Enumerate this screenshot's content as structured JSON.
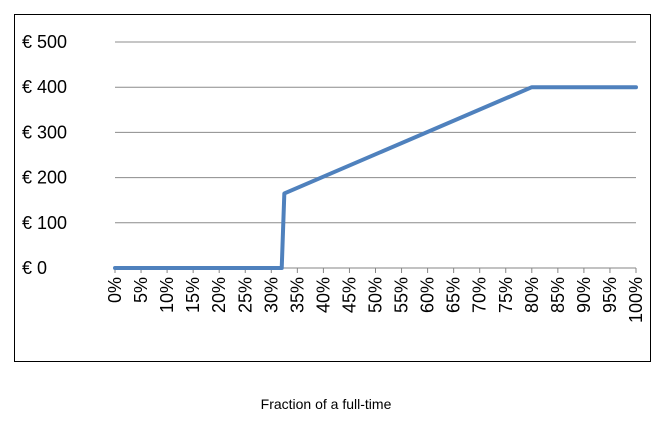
{
  "chart_data": {
    "type": "line",
    "title": "",
    "xlabel": "Fraction of a full-time",
    "ylabel": "",
    "x_unit": "% of full-time",
    "x_ticks": [
      0,
      5,
      10,
      15,
      20,
      25,
      30,
      35,
      40,
      45,
      50,
      55,
      60,
      65,
      70,
      75,
      80,
      85,
      90,
      95,
      100
    ],
    "x_tick_labels": [
      "0%",
      "5%",
      "10%",
      "15%",
      "20%",
      "25%",
      "30%",
      "35%",
      "40%",
      "45%",
      "50%",
      "55%",
      "60%",
      "65%",
      "70%",
      "75%",
      "80%",
      "85%",
      "90%",
      "95%",
      "100%"
    ],
    "y_ticks": [
      0,
      100,
      200,
      300,
      400,
      500
    ],
    "y_tick_labels": [
      "€ 0",
      "€ 100",
      "€ 200",
      "€ 300",
      "€ 400",
      "€ 500"
    ],
    "xlim": [
      0,
      100
    ],
    "ylim": [
      0,
      500
    ],
    "grid": "horizontal",
    "legend": "none",
    "series": [
      {
        "color": "#4f81bd",
        "x": [
          0,
          32,
          32.5,
          80,
          100
        ],
        "y": [
          0,
          0,
          165,
          400,
          400
        ]
      }
    ]
  }
}
